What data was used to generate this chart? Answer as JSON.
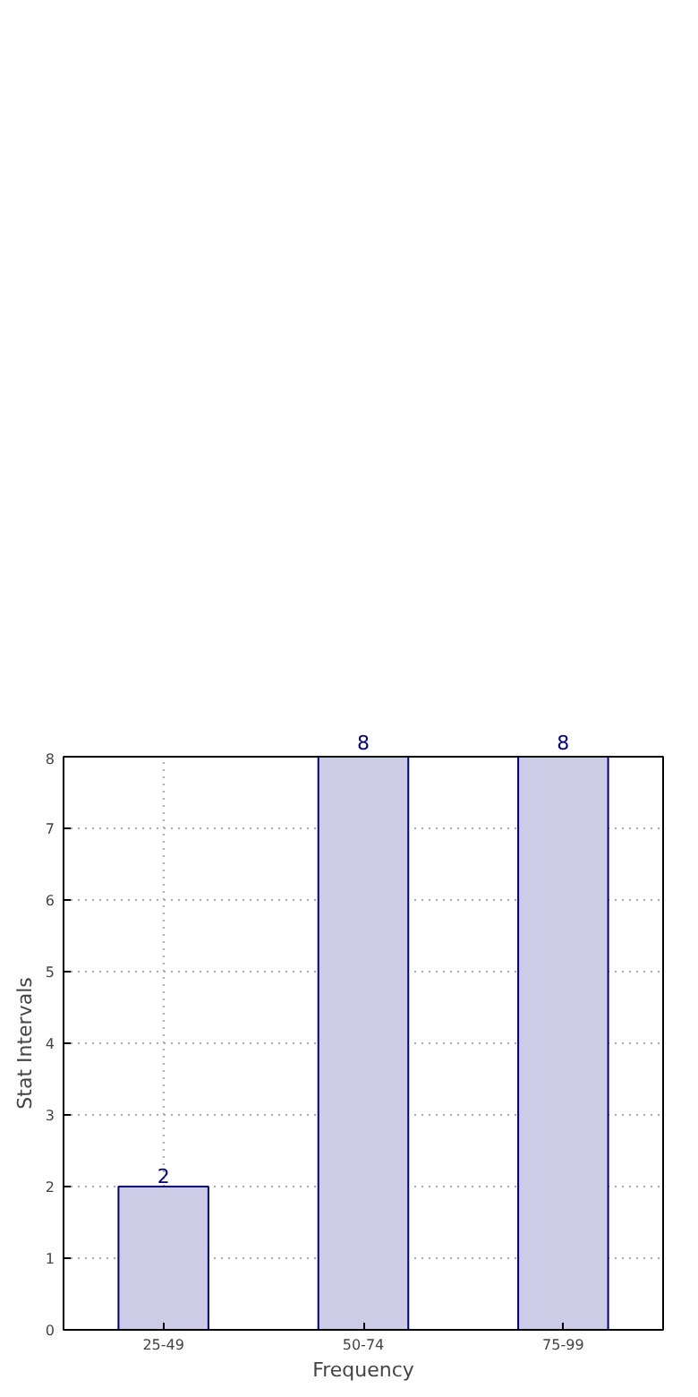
{
  "chart_data": {
    "type": "bar",
    "xlabel": "Frequency",
    "ylabel": "Stat Intervals",
    "categories": [
      "25-49",
      "50-74",
      "75-99"
    ],
    "values": [
      2,
      8,
      8
    ],
    "color": "#cccce6",
    "ylim": [
      0,
      8
    ],
    "yticks": [
      0,
      1,
      2,
      3,
      4,
      5,
      6,
      7,
      8
    ],
    "grid": true,
    "data_labels": true
  }
}
